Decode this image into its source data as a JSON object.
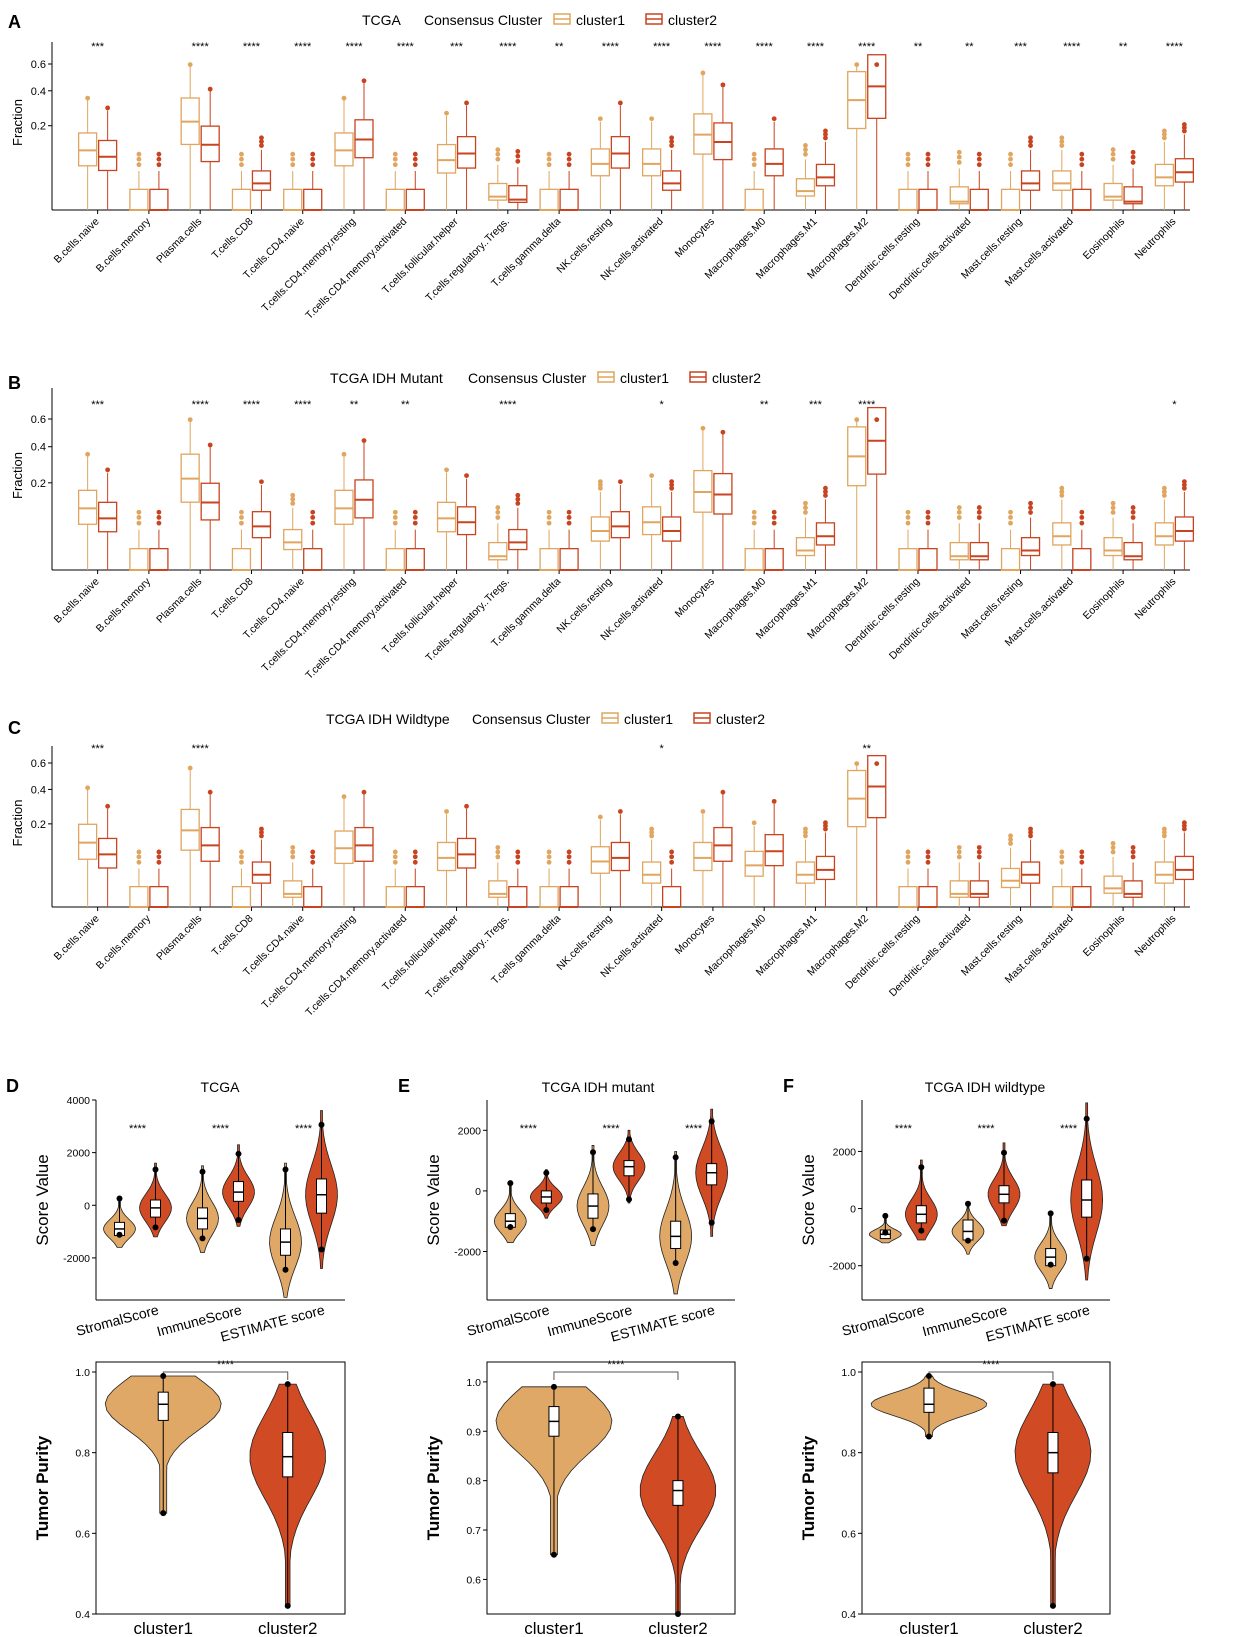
{
  "colors": {
    "cluster1": "#e0a55e",
    "cluster2": "#c8431f",
    "fill1": "#e0a866",
    "fill2": "#d04a23",
    "axis": "#000000"
  },
  "chart_data": [
    {
      "id": "A",
      "panel_label": "A",
      "type": "box",
      "title": "TCGA",
      "legend_title": "Consensus Cluster",
      "legend": [
        "cluster1",
        "cluster2"
      ],
      "ylabel": "Fraction",
      "yticks": [
        "0.6",
        "0.4",
        "0.2"
      ],
      "ytick_values": [
        0.6,
        0.4,
        0.2
      ],
      "categories": [
        "B.cells.naive",
        "B.cells.memory",
        "Plasma.cells",
        "T.cells.CD8",
        "T.cells.CD4.naive",
        "T.cells.CD4.memory.resting",
        "T.cells.CD4.memory.activated",
        "T.cells.follicular.helper",
        "T.cells.regulatory..Tregs.",
        "T.cells.gamma.delta",
        "NK.cells.resting",
        "NK.cells.activated",
        "Monocytes",
        "Macrophages.M0",
        "Macrophages.M1",
        "Macrophages.M2",
        "Dendritic.cells.resting",
        "Dendritic.cells.activated",
        "Mast.cells.resting",
        "Mast.cells.activated",
        "Eosinophils",
        "Neutrophils"
      ],
      "significance": [
        "***",
        "",
        "****",
        "****",
        "****",
        "****",
        "****",
        "***",
        "****",
        "**",
        "****",
        "****",
        "****",
        "****",
        "****",
        "****",
        "**",
        "**",
        "***",
        "****",
        "**",
        "****"
      ],
      "medians_cluster1": [
        0.1,
        0.0,
        0.22,
        0.0,
        0.0,
        0.1,
        0.0,
        0.07,
        0.005,
        0.0,
        0.06,
        0.06,
        0.16,
        0.0,
        0.01,
        0.34,
        0.0,
        0.002,
        0.0,
        0.02,
        0.005,
        0.03
      ],
      "medians_cluster2": [
        0.08,
        0.0,
        0.12,
        0.02,
        0.0,
        0.14,
        0.0,
        0.09,
        0.003,
        0.0,
        0.09,
        0.02,
        0.13,
        0.06,
        0.03,
        0.43,
        0.0,
        0.0,
        0.02,
        0.0,
        0.002,
        0.04
      ]
    },
    {
      "id": "B",
      "panel_label": "B",
      "type": "box",
      "title": "TCGA IDH Mutant",
      "legend_title": "Consensus Cluster",
      "legend": [
        "cluster1",
        "cluster2"
      ],
      "ylabel": "Fraction",
      "yticks": [
        "0.6",
        "0.4",
        "0.2"
      ],
      "ytick_values": [
        0.6,
        0.4,
        0.2
      ],
      "categories": [
        "B.cells.naive",
        "B.cells.memory",
        "Plasma.cells",
        "T.cells.CD8",
        "T.cells.CD4.naive",
        "T.cells.CD4.memory.resting",
        "T.cells.CD4.memory.activated",
        "T.cells.follicular.helper",
        "T.cells.regulatory..Tregs.",
        "T.cells.gamma.delta",
        "NK.cells.resting",
        "NK.cells.activated",
        "Monocytes",
        "Macrophages.M0",
        "Macrophages.M1",
        "Macrophages.M2",
        "Dendritic.cells.resting",
        "Dendritic.cells.activated",
        "Mast.cells.resting",
        "Mast.cells.activated",
        "Eosinophils",
        "Neutrophils"
      ],
      "significance": [
        "***",
        "",
        "****",
        "****",
        "****",
        "**",
        "**",
        "",
        "****",
        "",
        "",
        "*",
        "",
        "**",
        "***",
        "****",
        "",
        "",
        "",
        "",
        "",
        "*"
      ],
      "medians_cluster1": [
        0.1,
        0.0,
        0.22,
        0.0,
        0.02,
        0.1,
        0.0,
        0.07,
        0.005,
        0.0,
        0.04,
        0.06,
        0.16,
        0.0,
        0.01,
        0.34,
        0.0,
        0.005,
        0.0,
        0.03,
        0.01,
        0.03
      ],
      "medians_cluster2": [
        0.07,
        0.0,
        0.12,
        0.05,
        0.0,
        0.13,
        0.0,
        0.06,
        0.02,
        0.0,
        0.05,
        0.04,
        0.15,
        0.0,
        0.03,
        0.44,
        0.0,
        0.005,
        0.01,
        0.0,
        0.005,
        0.04
      ]
    },
    {
      "id": "C",
      "panel_label": "C",
      "type": "box",
      "title": "TCGA IDH Wildtype",
      "legend_title": "Consensus Cluster",
      "legend": [
        "cluster1",
        "cluster2"
      ],
      "ylabel": "Fraction",
      "yticks": [
        "0.6",
        "0.4",
        "0.2"
      ],
      "ytick_values": [
        0.6,
        0.4,
        0.2
      ],
      "categories": [
        "B.cells.naive",
        "B.cells.memory",
        "Plasma.cells",
        "T.cells.CD8",
        "T.cells.CD4.naive",
        "T.cells.CD4.memory.resting",
        "T.cells.CD4.memory.activated",
        "T.cells.follicular.helper",
        "T.cells.regulatory..Tregs.",
        "T.cells.gamma.delta",
        "NK.cells.resting",
        "NK.cells.activated",
        "Monocytes",
        "Macrophages.M0",
        "Macrophages.M1",
        "Macrophages.M2",
        "Dendritic.cells.resting",
        "Dendritic.cells.activated",
        "Mast.cells.resting",
        "Mast.cells.activated",
        "Eosinophils",
        "Neutrophils"
      ],
      "significance": [
        "***",
        "",
        "****",
        "",
        "",
        "",
        "",
        "",
        "",
        "",
        "",
        "*",
        "",
        "",
        "",
        "**",
        "",
        "",
        "",
        "",
        "",
        ""
      ],
      "medians_cluster1": [
        0.12,
        0.0,
        0.17,
        0.0,
        0.005,
        0.1,
        0.0,
        0.07,
        0.005,
        0.0,
        0.06,
        0.03,
        0.07,
        0.05,
        0.03,
        0.34,
        0.0,
        0.005,
        0.02,
        0.0,
        0.01,
        0.03
      ],
      "medians_cluster2": [
        0.08,
        0.0,
        0.11,
        0.03,
        0.0,
        0.11,
        0.0,
        0.08,
        0.0,
        0.0,
        0.07,
        0.0,
        0.11,
        0.09,
        0.04,
        0.42,
        0.0,
        0.005,
        0.03,
        0.0,
        0.005,
        0.04
      ]
    },
    {
      "id": "D_top",
      "panel_label": "D",
      "type": "violin",
      "title": "TCGA",
      "ylabel": "Score Value",
      "categories": [
        "StromalScore",
        "ImmuneScore",
        "ESTIMATE score"
      ],
      "yticks": [
        "4000",
        "2000",
        "0",
        "-2000"
      ],
      "ytick_values": [
        4000,
        2000,
        0,
        -2000
      ],
      "ylim": [
        -3600,
        4000
      ],
      "significance": [
        "****",
        "****",
        "****"
      ],
      "series": [
        {
          "name": "cluster1",
          "median": [
            -900,
            -500,
            -1400
          ],
          "q1": [
            -1150,
            -900,
            -1900
          ],
          "q3": [
            -650,
            -100,
            -900
          ],
          "min": [
            -1600,
            -1800,
            -3500
          ],
          "max": [
            300,
            1500,
            1600
          ]
        },
        {
          "name": "cluster2",
          "median": [
            -100,
            500,
            400
          ],
          "q1": [
            -450,
            150,
            -300
          ],
          "q3": [
            200,
            900,
            1000
          ],
          "min": [
            -1200,
            -800,
            -2400
          ],
          "max": [
            1600,
            2300,
            3600
          ]
        }
      ]
    },
    {
      "id": "D_bottom",
      "type": "violin",
      "ylabel": "Tumor Purity",
      "categories": [
        "cluster1",
        "cluster2"
      ],
      "yticks": [
        "1.0",
        "0.8",
        "0.6",
        "0.4"
      ],
      "ytick_values": [
        1.0,
        0.8,
        0.6,
        0.4
      ],
      "ylim": [
        0.4,
        1.0
      ],
      "significance": "****",
      "median": [
        0.92,
        0.79
      ],
      "q1": [
        0.88,
        0.74
      ],
      "q3": [
        0.95,
        0.85
      ],
      "min": [
        0.65,
        0.42
      ],
      "max": [
        0.99,
        0.97
      ]
    },
    {
      "id": "E_top",
      "panel_label": "E",
      "type": "violin",
      "title": "TCGA IDH mutant",
      "ylabel": "Score Value",
      "categories": [
        "StromalScore",
        "ImmuneScore",
        "ESTIMATE score"
      ],
      "yticks": [
        "2000",
        "0",
        "-2000"
      ],
      "ytick_values": [
        2000,
        0,
        -2000
      ],
      "ylim": [
        -3600,
        3000
      ],
      "significance": [
        "****",
        "****",
        "****"
      ],
      "series": [
        {
          "name": "cluster1",
          "median": [
            -1000,
            -500,
            -1500
          ],
          "q1": [
            -1200,
            -900,
            -1900
          ],
          "q3": [
            -750,
            -100,
            -1000
          ],
          "min": [
            -1700,
            -1800,
            -3400
          ],
          "max": [
            300,
            1500,
            1300
          ]
        },
        {
          "name": "cluster2",
          "median": [
            -200,
            800,
            600
          ],
          "q1": [
            -400,
            500,
            200
          ],
          "q3": [
            0,
            1000,
            900
          ],
          "min": [
            -900,
            -400,
            -1500
          ],
          "max": [
            700,
            2000,
            2700
          ]
        }
      ]
    },
    {
      "id": "E_bottom",
      "type": "violin",
      "ylabel": "Tumor Purity",
      "categories": [
        "cluster1",
        "cluster2"
      ],
      "yticks": [
        "1.0",
        "0.9",
        "0.8",
        "0.7",
        "0.6"
      ],
      "ytick_values": [
        1.0,
        0.9,
        0.8,
        0.7,
        0.6
      ],
      "ylim": [
        0.53,
        1.02
      ],
      "significance": "****",
      "median": [
        0.92,
        0.78
      ],
      "q1": [
        0.89,
        0.75
      ],
      "q3": [
        0.95,
        0.8
      ],
      "min": [
        0.65,
        0.53
      ],
      "max": [
        0.99,
        0.93
      ]
    },
    {
      "id": "F_top",
      "panel_label": "F",
      "type": "violin",
      "title": "TCGA IDH wildtype",
      "ylabel": "Score Value",
      "categories": [
        "StromalScore",
        "ImmuneScore",
        "ESTIMATE score"
      ],
      "yticks": [
        "2000",
        "0",
        "-2000"
      ],
      "ytick_values": [
        2000,
        0,
        -2000
      ],
      "ylim": [
        -3200,
        3800
      ],
      "significance": [
        "****",
        "****",
        "****"
      ],
      "series": [
        {
          "name": "cluster1",
          "median": [
            -900,
            -800,
            -1700
          ],
          "q1": [
            -1050,
            -1100,
            -2000
          ],
          "q3": [
            -750,
            -400,
            -1400
          ],
          "min": [
            -1200,
            -1600,
            -2800
          ],
          "max": [
            -300,
            200,
            -200
          ]
        },
        {
          "name": "cluster2",
          "median": [
            -200,
            500,
            300
          ],
          "q1": [
            -500,
            200,
            -300
          ],
          "q3": [
            100,
            800,
            1000
          ],
          "min": [
            -1100,
            -600,
            -2500
          ],
          "max": [
            1700,
            2300,
            3700
          ]
        }
      ]
    },
    {
      "id": "F_bottom",
      "type": "violin",
      "ylabel": "Tumor Purity",
      "categories": [
        "cluster1",
        "cluster2"
      ],
      "yticks": [
        "1.0",
        "0.8",
        "0.6",
        "0.4"
      ],
      "ytick_values": [
        1.0,
        0.8,
        0.6,
        0.4
      ],
      "ylim": [
        0.4,
        1.0
      ],
      "significance": "****",
      "median": [
        0.92,
        0.8
      ],
      "q1": [
        0.9,
        0.75
      ],
      "q3": [
        0.96,
        0.85
      ],
      "min": [
        0.84,
        0.42
      ],
      "max": [
        0.99,
        0.97
      ]
    }
  ]
}
